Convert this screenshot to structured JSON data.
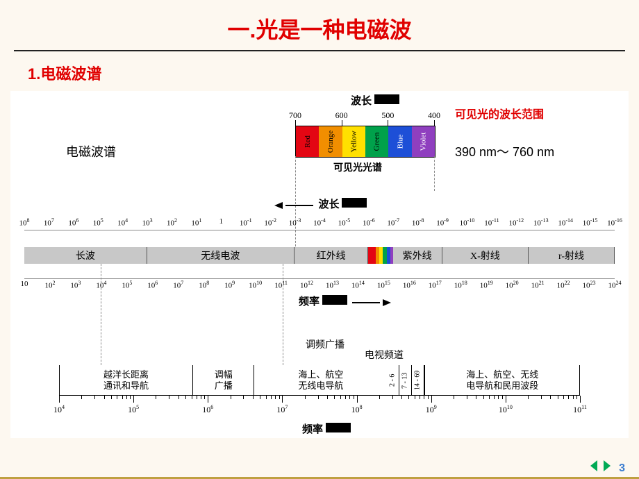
{
  "title": "一.光是一种电磁波",
  "subtitle": "1.电磁波谱",
  "diagram": {
    "top_wavelength_label": "波长",
    "visible_range_label": "可见光的波长范围",
    "spectrum_label_left": "电磁波谱",
    "visible_range_value": "390 nm～ 760 nm",
    "visible_spectrum_caption": "可见光光谱",
    "wavelength_arrow_label": "波长",
    "frequency_arrow_label": "频率",
    "frequency_bottom_label": "频率",
    "fm_label": "调频广播",
    "tv_label": "电视频道",
    "visible_scale": {
      "ticks": [
        700,
        600,
        500,
        400
      ]
    },
    "visible_bands": [
      {
        "name": "Red",
        "color": "#e30613"
      },
      {
        "name": "Orange",
        "color": "#f18e00"
      },
      {
        "name": "Yellow",
        "color": "#ffe000"
      },
      {
        "name": "Green",
        "color": "#00a14b"
      },
      {
        "name": "Blue",
        "color": "#1d4fd7"
      },
      {
        "name": "Violet",
        "color": "#8f3fbf"
      }
    ],
    "wavelength_scale_top": {
      "exponents": [
        8,
        7,
        6,
        5,
        4,
        3,
        2,
        1,
        null,
        -1,
        -2,
        -3,
        -4,
        -5,
        -6,
        -7,
        -8,
        -9,
        -10,
        -11,
        -12,
        -13,
        -14,
        -15,
        -16
      ]
    },
    "frequency_scale": {
      "values": [
        null,
        2,
        3,
        4,
        5,
        6,
        7,
        8,
        9,
        10,
        11,
        12,
        13,
        14,
        15,
        16,
        17,
        18,
        19,
        20,
        21,
        22,
        23,
        24
      ]
    },
    "main_bands": [
      {
        "label": "长波",
        "flex": 5
      },
      {
        "label": "无线电波",
        "flex": 6
      },
      {
        "label": "红外线",
        "flex": 3
      },
      {
        "label": "",
        "flex": 0.3,
        "color": "#e30613"
      },
      {
        "label": "",
        "flex": 0.15,
        "color": "#f18e00"
      },
      {
        "label": "",
        "flex": 0.15,
        "color": "#ffe000"
      },
      {
        "label": "",
        "flex": 0.15,
        "color": "#00a14b"
      },
      {
        "label": "",
        "flex": 0.15,
        "color": "#1d4fd7"
      },
      {
        "label": "",
        "flex": 0.1,
        "color": "#8f3fbf"
      },
      {
        "label": "紫外线",
        "flex": 2
      },
      {
        "label": "X-射线",
        "flex": 3.5
      },
      {
        "label": "r-射线",
        "flex": 3.5
      }
    ],
    "app_bands": [
      {
        "label": "越洋长距离\n通讯和导航",
        "flex": 3
      },
      {
        "label": "调幅\n广播",
        "flex": 1.3
      },
      {
        "label": "海上、航空\n无线电导航",
        "flex": 3
      },
      {
        "label": "2 - 6",
        "flex": 0.4,
        "rot": true
      },
      {
        "label": "7 - 13",
        "flex": 0.4,
        "rot": true
      },
      {
        "label": "14 - 69",
        "flex": 0.5,
        "rot": true
      },
      {
        "label": "海上、航空、无线\n电导航和民用波段",
        "flex": 3.5
      }
    ],
    "app_scale": {
      "exponents": [
        4,
        5,
        6,
        7,
        8,
        9,
        10,
        11
      ]
    }
  },
  "footer": {
    "page_number": "3"
  }
}
